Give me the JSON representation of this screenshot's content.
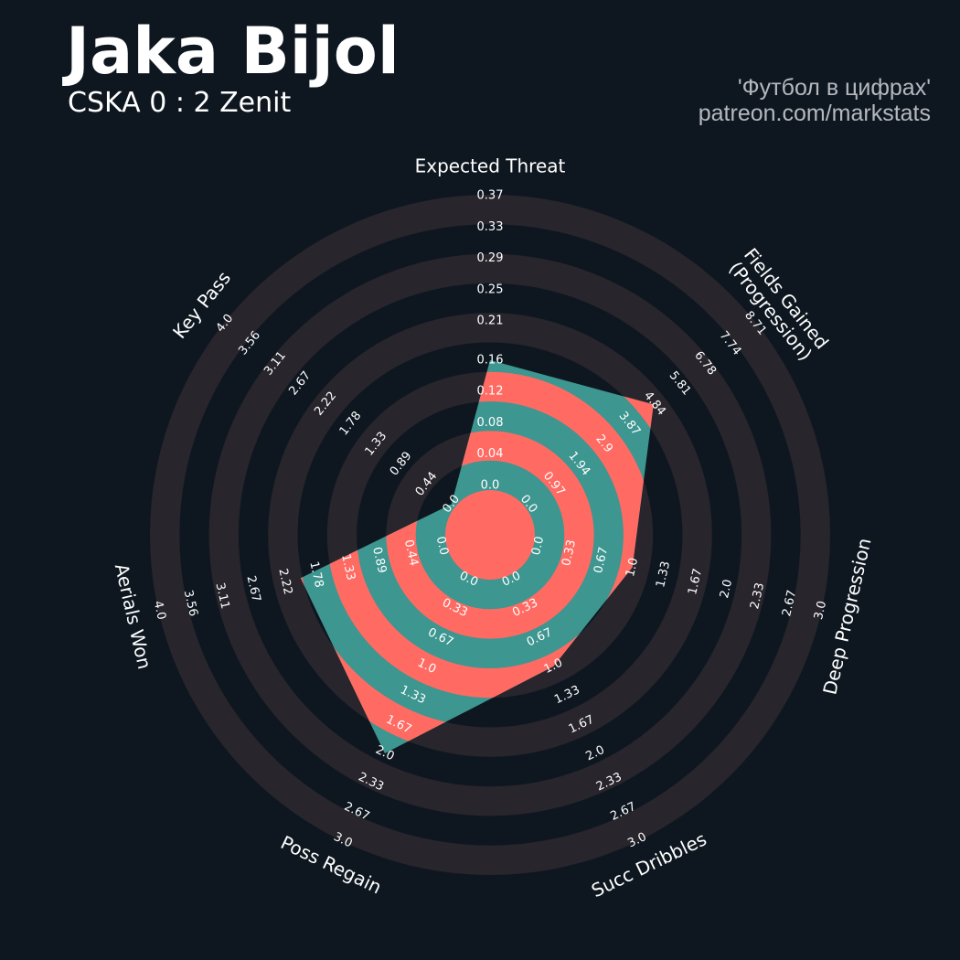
{
  "chart_data": {
    "type": "radar",
    "title": "Jaka Bijol",
    "subtitle": "CSKA 0 : 2 Zenit",
    "credits": [
      "'Футбол в цифрах'",
      "patreon.com/markstats"
    ],
    "colors": {
      "background": "#0e1720",
      "rings": "#28252c",
      "fill": "#3d9690",
      "fill_alt": "#ff6b63"
    },
    "axes": [
      {
        "label": [
          "Expected Threat"
        ],
        "lim": [
          0,
          0.37
        ],
        "ticks": [
          {
            "value": 0,
            "label": "0.0"
          },
          0.04,
          0.08,
          0.12,
          0.16,
          0.21,
          0.25,
          0.29,
          0.33,
          0.37
        ]
      },
      {
        "label": [
          "Fields Gained",
          "(Progression)"
        ],
        "lim": [
          0,
          8.71
        ],
        "ticks": [
          {
            "value": 0,
            "label": "0.0"
          },
          0.97,
          1.94,
          2.9,
          3.87,
          4.84,
          5.81,
          6.78,
          7.74,
          8.71
        ]
      },
      {
        "label": [
          "Deep Progression"
        ],
        "lim": [
          0,
          3
        ],
        "ticks": [
          {
            "value": 0,
            "label": "0.0"
          },
          0.33,
          0.67,
          {
            "value": 1,
            "label": "1.0"
          },
          1.33,
          1.67,
          {
            "value": 2,
            "label": "2.0"
          },
          2.33,
          2.67,
          {
            "value": 3,
            "label": "3.0"
          }
        ]
      },
      {
        "label": [
          "Succ Dribbles"
        ],
        "lim": [
          0,
          3
        ],
        "ticks": [
          {
            "value": 0,
            "label": "0.0"
          },
          0.33,
          0.67,
          {
            "value": 1,
            "label": "1.0"
          },
          1.33,
          1.67,
          {
            "value": 2,
            "label": "2.0"
          },
          2.33,
          2.67,
          {
            "value": 3,
            "label": "3.0"
          }
        ]
      },
      {
        "label": [
          "Poss Regain"
        ],
        "lim": [
          0,
          3
        ],
        "ticks": [
          {
            "value": 0,
            "label": "0.0"
          },
          0.33,
          0.67,
          {
            "value": 1,
            "label": "1.0"
          },
          1.33,
          1.67,
          {
            "value": 2,
            "label": "2.0"
          },
          2.33,
          2.67,
          {
            "value": 3,
            "label": "3.0"
          }
        ]
      },
      {
        "label": [
          "Aerials Won"
        ],
        "lim": [
          0,
          4
        ],
        "ticks": [
          {
            "value": 0,
            "label": "0.0"
          },
          0.44,
          0.89,
          1.33,
          1.78,
          2.22,
          2.67,
          3.11,
          3.56,
          {
            "value": 4,
            "label": "4.0"
          }
        ]
      },
      {
        "label": [
          "Key Pass"
        ],
        "lim": [
          0,
          4
        ],
        "ticks": [
          {
            "value": 0,
            "label": "0.0"
          },
          0.44,
          0.89,
          1.33,
          1.78,
          2.22,
          2.67,
          3.11,
          3.56,
          {
            "value": 4,
            "label": "4.0"
          }
        ]
      }
    ],
    "values": [
      0.16,
      4.8,
      1.0,
      1.0,
      2.0,
      2.0,
      0.0
    ]
  }
}
